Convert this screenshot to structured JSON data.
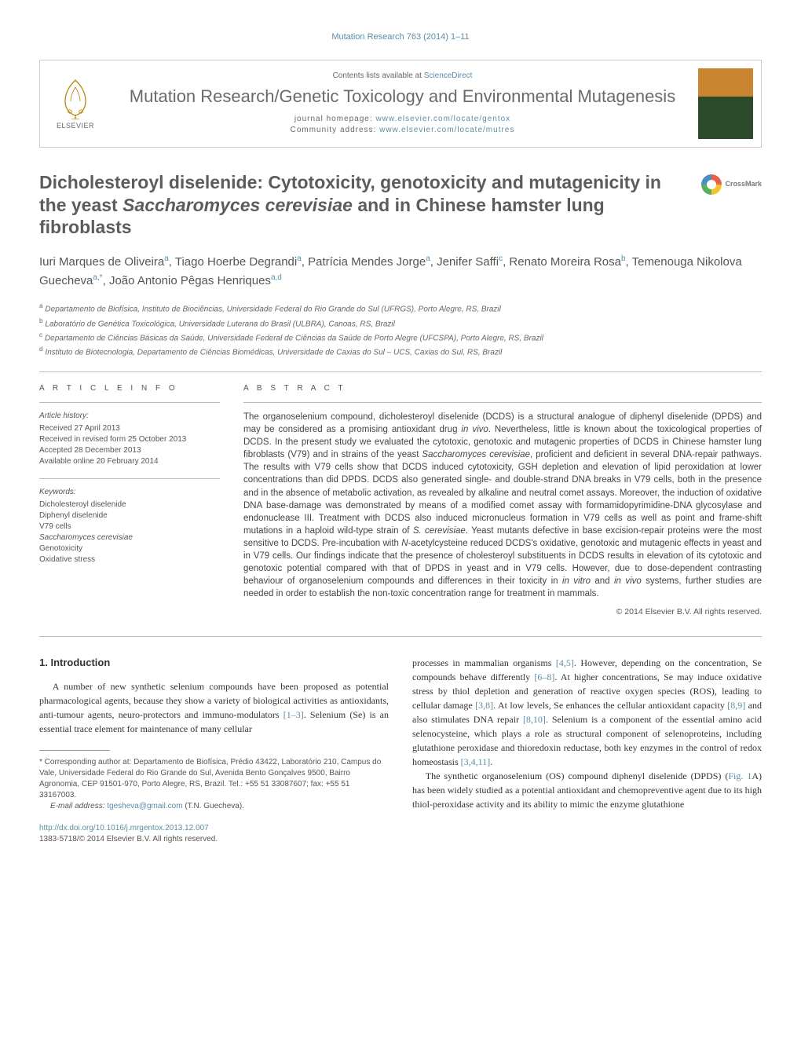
{
  "page": {
    "running_head": "Mutation Research 763 (2014) 1–11",
    "background_color": "#ffffff",
    "text_color": "#333333",
    "link_color": "#5a8da8",
    "heading_gray": "#5c5c5c"
  },
  "header": {
    "publisher_label": "ELSEVIER",
    "contents_prefix": "Contents lists available at ",
    "contents_link": "ScienceDirect",
    "journal_name": "Mutation Research/Genetic Toxicology and Environmental Mutagenesis",
    "homepage_label": "journal homepage: ",
    "homepage_url": "www.elsevier.com/locate/gentox",
    "community_label": "Community address: ",
    "community_url": "www.elsevier.com/locate/mutres",
    "cover_colors": {
      "top": "#c9842f",
      "bottom": "#2a4a2a"
    }
  },
  "crossmark_label": "CrossMark",
  "title": "Dicholesteroyl diselenide: Cytotoxicity, genotoxicity and mutagenicity in the yeast Saccharomyces cerevisiae and in Chinese hamster lung fibroblasts",
  "authors_html": "Iuri Marques de Oliveira<sup>a</sup>, Tiago Hoerbe Degrandi<sup>a</sup>, Patrícia Mendes Jorge<sup>a</sup>, Jenifer Saffi<sup>c</sup>, Renato Moreira Rosa<sup>b</sup>, Temenouga Nikolova Guecheva<sup>a,*</sup>, João Antonio Pêgas Henriques<sup>a,d</sup>",
  "affiliations": [
    "a Departamento de Biofísica, Instituto de Biociências, Universidade Federal do Rio Grande do Sul (UFRGS), Porto Alegre, RS, Brazil",
    "b Laboratório de Genética Toxicológica, Universidade Luterana do Brasil (ULBRA), Canoas, RS, Brazil",
    "c Departamento de Ciências Básicas da Saúde, Universidade Federal de Ciências da Saúde de Porto Alegre (UFCSPA), Porto Alegre, RS, Brazil",
    "d Instituto de Biotecnologia, Departamento de Ciências Biomédicas, Universidade de Caxias do Sul – UCS, Caxias do Sul, RS, Brazil"
  ],
  "article_info": {
    "section_label": "A R T I C L E   I N F O",
    "history_label": "Article history:",
    "history": [
      "Received 27 April 2013",
      "Received in revised form 25 October 2013",
      "Accepted 28 December 2013",
      "Available online 20 February 2014"
    ],
    "keywords_label": "Keywords:",
    "keywords": [
      "Dicholesteroyl diselenide",
      "Diphenyl diselenide",
      "V79 cells",
      "Saccharomyces cerevisiae",
      "Genotoxicity",
      "Oxidative stress"
    ]
  },
  "abstract": {
    "section_label": "A B S T R A C T",
    "text": "The organoselenium compound, dicholesteroyl diselenide (DCDS) is a structural analogue of diphenyl diselenide (DPDS) and may be considered as a promising antioxidant drug in vivo. Nevertheless, little is known about the toxicological properties of DCDS. In the present study we evaluated the cytotoxic, genotoxic and mutagenic properties of DCDS in Chinese hamster lung fibroblasts (V79) and in strains of the yeast Saccharomyces cerevisiae, proficient and deficient in several DNA-repair pathways. The results with V79 cells show that DCDS induced cytotoxicity, GSH depletion and elevation of lipid peroxidation at lower concentrations than did DPDS. DCDS also generated single- and double-strand DNA breaks in V79 cells, both in the presence and in the absence of metabolic activation, as revealed by alkaline and neutral comet assays. Moreover, the induction of oxidative DNA base-damage was demonstrated by means of a modified comet assay with formamidopyrimidine-DNA glycosylase and endonuclease III. Treatment with DCDS also induced micronucleus formation in V79 cells as well as point and frame-shift mutations in a haploid wild-type strain of S. cerevisiae. Yeast mutants defective in base excision-repair proteins were the most sensitive to DCDS. Pre-incubation with N-acetylcysteine reduced DCDS's oxidative, genotoxic and mutagenic effects in yeast and in V79 cells. Our findings indicate that the presence of cholesteroyl substituents in DCDS results in elevation of its cytotoxic and genotoxic potential compared with that of DPDS in yeast and in V79 cells. However, due to dose-dependent contrasting behaviour of organoselenium compounds and differences in their toxicity in in vitro and in vivo systems, further studies are needed in order to establish the non-toxic concentration range for treatment in mammals.",
    "copyright": "© 2014 Elsevier B.V. All rights reserved."
  },
  "intro": {
    "heading": "1.  Introduction",
    "para1": "A number of new synthetic selenium compounds have been proposed as potential pharmacological agents, because they show a variety of biological activities as antioxidants, anti-tumour agents, neuro-protectors and immuno-modulators ",
    "ref1": "[1–3]",
    "para1b": ". Selenium (Se) is an essential trace element for maintenance of many cellular",
    "para2a": "processes in mammalian organisms ",
    "ref2a": "[4,5]",
    "para2b": ". However, depending on the concentration, Se compounds behave differently ",
    "ref2b": "[6–8]",
    "para2c": ". At higher concentrations, Se may induce oxidative stress by thiol depletion and generation of reactive oxygen species (ROS), leading to cellular damage ",
    "ref2c": "[3,8]",
    "para2d": ". At low levels, Se enhances the cellular antioxidant capacity ",
    "ref2d": "[8,9]",
    "para2e": " and also stimulates DNA repair ",
    "ref2e": "[8,10]",
    "para2f": ". Selenium is a component of the essential amino acid selenocysteine, which plays a role as structural component of selenoproteins, including glutathione peroxidase and thioredoxin reductase, both key enzymes in the control of redox homeostasis ",
    "ref2f": "[3,4,11]",
    "para2g": ".",
    "para3a": "The synthetic organoselenium (OS) compound diphenyl diselenide (DPDS) (",
    "ref3a": "Fig. 1",
    "para3b": "A) has been widely studied as a potential antioxidant and chemopreventive agent due to its high thiol-peroxidase activity and its ability to mimic the enzyme glutathione"
  },
  "footnote": {
    "corresponding": "* Corresponding author at: Departamento de Biofísica, Prédio 43422, Laboratório 210, Campus do Vale, Universidade Federal do Rio Grande do Sul, Avenida Bento Gonçalves 9500, Bairro Agronomia, CEP 91501-970, Porto Alegre, RS, Brazil. Tel.: +55 51 33087607; fax: +55 51 33167003.",
    "email_label": "E-mail address: ",
    "email": "tgesheva@gmail.com",
    "email_tail": " (T.N. Guecheva)."
  },
  "doi": {
    "url": "http://dx.doi.org/10.1016/j.mrgentox.2013.12.007",
    "issn_line": "1383-5718/© 2014 Elsevier B.V. All rights reserved."
  }
}
